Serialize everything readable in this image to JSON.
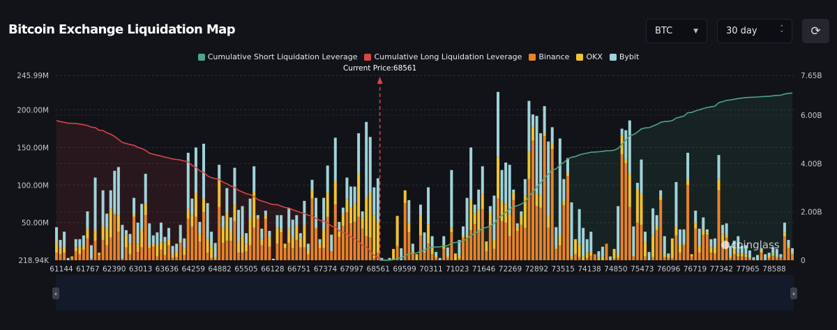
{
  "header": {
    "title": "Bitcoin Exchange Liquidation Map",
    "coin_select": {
      "value": "BTC",
      "icon": "caret-down-icon"
    },
    "range_select": {
      "value": "30 day",
      "icon": "up-down-chevron-icon"
    },
    "refresh_icon": "refresh-icon"
  },
  "watermark": "coinglass",
  "chart_data": {
    "type": "bar",
    "stacked": true,
    "legend_position": "top-center",
    "legend": [
      {
        "name": "Cumulative Short Liquidation Leverage",
        "color": "#4fa58a"
      },
      {
        "name": "Cumulative Long Liquidation Leverage",
        "color": "#d94545"
      },
      {
        "name": "Binance",
        "color": "#e8832a"
      },
      {
        "name": "OKX",
        "color": "#f1c232"
      },
      {
        "name": "Bybit",
        "color": "#9fd3d9"
      }
    ],
    "current_price_label": "Current Price:68561",
    "current_price": 68561,
    "x_tick_labels": [
      "61144",
      "61767",
      "62390",
      "63013",
      "63636",
      "64259",
      "64882",
      "65505",
      "66128",
      "66751",
      "67374",
      "67997",
      "68561",
      "69599",
      "70311",
      "71023",
      "71646",
      "72269",
      "72892",
      "73515",
      "74138",
      "74850",
      "75473",
      "76096",
      "76719",
      "77342",
      "77965",
      "78588"
    ],
    "left_axis": {
      "unit": "USD",
      "ticks": [
        "218.94K",
        "50.00M",
        "100.00M",
        "150.00M",
        "200.00M",
        "245.99M"
      ],
      "range_millions": [
        0.21894,
        245.99
      ]
    },
    "right_axis": {
      "ticks": [
        "0",
        "2.00B",
        "4.00B",
        "6.00B",
        "7.65B"
      ],
      "range_billions": [
        0,
        7.65
      ]
    },
    "grid": true,
    "bar_fields": [
      "Binance",
      "OKX",
      "Bybit"
    ],
    "bar_units": "millions USD",
    "long_side": [
      [
        10,
        15,
        19
      ],
      [
        8,
        8,
        11
      ],
      [
        10,
        8,
        20
      ],
      [
        0,
        0,
        3
      ],
      [
        3,
        2,
        0
      ],
      [
        12,
        5,
        11
      ],
      [
        8,
        10,
        10
      ],
      [
        14,
        5,
        14
      ],
      [
        29,
        13,
        23
      ],
      [
        2,
        0,
        18
      ],
      [
        26,
        14,
        70
      ],
      [
        7,
        2,
        1
      ],
      [
        27,
        19,
        47
      ],
      [
        20,
        22,
        20
      ],
      [
        30,
        38,
        25
      ],
      [
        61,
        2,
        56
      ],
      [
        38,
        22,
        64
      ],
      [
        2,
        0,
        45
      ],
      [
        17,
        17,
        6
      ],
      [
        8,
        14,
        13
      ],
      [
        58,
        3,
        22
      ],
      [
        11,
        11,
        28
      ],
      [
        17,
        23,
        35
      ],
      [
        60,
        16,
        39
      ],
      [
        16,
        4,
        29
      ],
      [
        18,
        4,
        11
      ],
      [
        5,
        15,
        17
      ],
      [
        14,
        10,
        26
      ],
      [
        7,
        17,
        7
      ],
      [
        20,
        8,
        15
      ],
      [
        3,
        5,
        11
      ],
      [
        4,
        8,
        10
      ],
      [
        23,
        3,
        21
      ],
      [
        7,
        9,
        13
      ],
      [
        55,
        13,
        75
      ],
      [
        45,
        15,
        22
      ],
      [
        58,
        32,
        60
      ],
      [
        25,
        11,
        15
      ],
      [
        64,
        18,
        73
      ],
      [
        10,
        19,
        47
      ],
      [
        3,
        16,
        19
      ],
      [
        1,
        2,
        20
      ],
      [
        71,
        35,
        21
      ],
      [
        23,
        20,
        16
      ],
      [
        26,
        37,
        33
      ],
      [
        26,
        13,
        18
      ],
      [
        52,
        22,
        49
      ],
      [
        10,
        15,
        42
      ],
      [
        10,
        22,
        40
      ],
      [
        12,
        10,
        14
      ],
      [
        20,
        36,
        26
      ],
      [
        43,
        49,
        33
      ],
      [
        55,
        2,
        3
      ],
      [
        20,
        8,
        14
      ],
      [
        55,
        5,
        6
      ],
      [
        18,
        13,
        8
      ],
      [
        0,
        0,
        2
      ],
      [
        22,
        21,
        17
      ],
      [
        37,
        4,
        19
      ],
      [
        16,
        6,
        0
      ],
      [
        23,
        19,
        27
      ],
      [
        16,
        14,
        24
      ],
      [
        27,
        19,
        14
      ],
      [
        17,
        12,
        7
      ],
      [
        17,
        30,
        32
      ],
      [
        8,
        6,
        8
      ],
      [
        82,
        11,
        14
      ],
      [
        42,
        1,
        40
      ],
      [
        16,
        6,
        6
      ],
      [
        16,
        24,
        43
      ],
      [
        58,
        32,
        36
      ],
      [
        12,
        0,
        22
      ],
      [
        74,
        31,
        58
      ],
      [
        31,
        9,
        11
      ],
      [
        46,
        16,
        8
      ],
      [
        64,
        17,
        29
      ],
      [
        49,
        21,
        28
      ],
      [
        51,
        25,
        22
      ],
      [
        58,
        58,
        53
      ],
      [
        42,
        14,
        9
      ],
      [
        32,
        51,
        101
      ],
      [
        30,
        60,
        74
      ],
      [
        3,
        57,
        37
      ],
      [
        10,
        41,
        58
      ]
    ],
    "short_side": [
      [
        0,
        0,
        3
      ],
      [
        0,
        0,
        1
      ],
      [
        0,
        0,
        3
      ],
      [
        0,
        15,
        0
      ],
      [
        19,
        40,
        0
      ],
      [
        0,
        0,
        16
      ],
      [
        76,
        17,
        0
      ],
      [
        37,
        13,
        30
      ],
      [
        8,
        4,
        10
      ],
      [
        0,
        8,
        0
      ],
      [
        33,
        27,
        14
      ],
      [
        10,
        5,
        22
      ],
      [
        22,
        26,
        49
      ],
      [
        8,
        9,
        15
      ],
      [
        3,
        3,
        5
      ],
      [
        0,
        0,
        3
      ],
      [
        15,
        6,
        11
      ],
      [
        3,
        2,
        12
      ],
      [
        37,
        6,
        77
      ],
      [
        0,
        9,
        0
      ],
      [
        2,
        5,
        20
      ],
      [
        30,
        2,
        13
      ],
      [
        30,
        4,
        49
      ],
      [
        40,
        40,
        70
      ],
      [
        48,
        15,
        11
      ],
      [
        37,
        30,
        27
      ],
      [
        68,
        20,
        37
      ],
      [
        12,
        13,
        0
      ],
      [
        46,
        18,
        8
      ],
      [
        15,
        12,
        59
      ],
      [
        82,
        56,
        86
      ],
      [
        52,
        27,
        41
      ],
      [
        50,
        25,
        55
      ],
      [
        32,
        30,
        65
      ],
      [
        80,
        10,
        4
      ],
      [
        39,
        6,
        4
      ],
      [
        47,
        12,
        6
      ],
      [
        43,
        43,
        22
      ],
      [
        108,
        36,
        68
      ],
      [
        159,
        19,
        16
      ],
      [
        72,
        17,
        103
      ],
      [
        70,
        17,
        82
      ],
      [
        165,
        3,
        37
      ],
      [
        43,
        16,
        99
      ],
      [
        148,
        8,
        21
      ],
      [
        15,
        3,
        26
      ],
      [
        20,
        12,
        130
      ],
      [
        73,
        5,
        30
      ],
      [
        112,
        4,
        20
      ],
      [
        2,
        3,
        72
      ],
      [
        8,
        20,
        0
      ],
      [
        4,
        18,
        46
      ],
      [
        0,
        5,
        38
      ],
      [
        3,
        7,
        18
      ],
      [
        6,
        5,
        27
      ],
      [
        8,
        0,
        0
      ],
      [
        0,
        4,
        8
      ],
      [
        0,
        5,
        13
      ],
      [
        22,
        0,
        0
      ],
      [
        0,
        2,
        3
      ],
      [
        2,
        13,
        0
      ],
      [
        3,
        4,
        65
      ],
      [
        141,
        26,
        8
      ],
      [
        129,
        6,
        38
      ],
      [
        71,
        44,
        71
      ],
      [
        5,
        0,
        40
      ],
      [
        50,
        45,
        8
      ],
      [
        47,
        42,
        45
      ],
      [
        5,
        19,
        14
      ],
      [
        0,
        0,
        11
      ],
      [
        4,
        30,
        35
      ],
      [
        40,
        5,
        15
      ],
      [
        80,
        5,
        8
      ],
      [
        4,
        4,
        24
      ],
      [
        3,
        3,
        3
      ],
      [
        3,
        26,
        0
      ],
      [
        33,
        12,
        59
      ],
      [
        10,
        10,
        21
      ],
      [
        20,
        2,
        19
      ],
      [
        100,
        7,
        36
      ],
      [
        5,
        3,
        0
      ],
      [
        42,
        8,
        16
      ],
      [
        10,
        10,
        22
      ],
      [
        34,
        6,
        17
      ],
      [
        34,
        3,
        4
      ],
      [
        10,
        7,
        11
      ],
      [
        9,
        10,
        10
      ],
      [
        93,
        15,
        32
      ],
      [
        25,
        10,
        12
      ],
      [
        30,
        4,
        15
      ],
      [
        3,
        3,
        13
      ],
      [
        8,
        8,
        10
      ],
      [
        5,
        5,
        22
      ],
      [
        5,
        4,
        10
      ],
      [
        4,
        4,
        12
      ],
      [
        2,
        1,
        10
      ],
      [
        0,
        2,
        2
      ],
      [
        0,
        0,
        7
      ],
      [
        10,
        3,
        3
      ],
      [
        0,
        0,
        8
      ],
      [
        3,
        3,
        4
      ],
      [
        6,
        3,
        8
      ],
      [
        3,
        2,
        10
      ],
      [
        4,
        0,
        4
      ],
      [
        32,
        5,
        13
      ],
      [
        16,
        4,
        7
      ],
      [
        8,
        2,
        6
      ]
    ]
  }
}
